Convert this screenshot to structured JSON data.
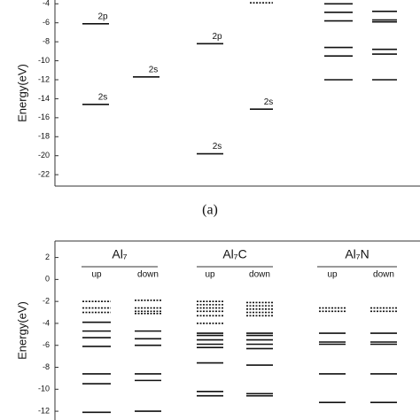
{
  "chart_data": [
    {
      "type": "level",
      "ylabel": "Energy(eV)",
      "ylim": [
        -23.2,
        -3.6
      ],
      "yticks": [
        -4,
        -6,
        -8,
        -10,
        -12,
        -14,
        -16,
        -18,
        -20,
        -22
      ],
      "caption": "(a)",
      "series": [
        {
          "values": [
            -6.1,
            -14.6
          ],
          "level_labels": [
            "2p",
            "2s"
          ]
        },
        {
          "values": [
            -11.7
          ],
          "level_labels": [
            "2s"
          ]
        },
        {
          "values": [
            -8.2,
            -19.8
          ],
          "level_labels": [
            "2p",
            "2s"
          ]
        },
        {
          "values": [
            -15.1
          ],
          "level_labels": [
            "2s"
          ],
          "dotted": [
            -3.9
          ]
        },
        {
          "values": [
            -4.0,
            -4.9,
            -5.8,
            -8.6,
            -9.5,
            -12.0
          ]
        },
        {
          "values": [
            -4.8,
            -5.7,
            -5.9,
            -8.8,
            -9.3,
            -12.0
          ]
        }
      ]
    },
    {
      "type": "level",
      "ylabel": "Energy(eV)",
      "ylim": [
        -12.8,
        3.5
      ],
      "yticks": [
        2,
        0,
        -2,
        -4,
        -6,
        -8,
        -10,
        -12
      ],
      "groups": [
        {
          "title": "Al₇",
          "series": [
            {
              "name": "up",
              "dotted": [
                -2.0,
                -2.6,
                -3.0
              ],
              "values": [
                -3.9,
                -4.7,
                -5.3,
                -6.1,
                -8.6,
                -9.5,
                -12.1
              ]
            },
            {
              "name": "down",
              "dotted": [
                -1.9,
                -2.6,
                -2.9,
                -3.1
              ],
              "values": [
                -4.7,
                -5.4,
                -6.0,
                -8.6,
                -9.2,
                -12.0
              ]
            }
          ]
        },
        {
          "title": "Al₇C",
          "series": [
            {
              "name": "up",
              "dotted": [
                -2.0,
                -2.3,
                -2.6,
                -2.9,
                -3.3,
                -4.0
              ],
              "values": [
                -4.9,
                -5.1,
                -5.5,
                -5.9,
                -6.2,
                -7.6,
                -10.2,
                -10.6
              ]
            },
            {
              "name": "down",
              "dotted": [
                -2.1,
                -2.4,
                -2.7,
                -3.0,
                -3.3
              ],
              "values": [
                -4.9,
                -5.1,
                -5.5,
                -5.9,
                -6.3,
                -7.8,
                -10.4,
                -10.6
              ]
            }
          ]
        },
        {
          "title": "Al₇N",
          "series": [
            {
              "name": "up",
              "dotted": [
                -2.6,
                -2.9
              ],
              "values": [
                -4.9,
                -5.7,
                -5.9,
                -8.6,
                -11.2
              ]
            },
            {
              "name": "down",
              "dotted": [
                -2.6,
                -2.9
              ],
              "values": [
                -4.9,
                -5.7,
                -5.9,
                -8.6,
                -11.2
              ]
            }
          ]
        }
      ]
    }
  ]
}
